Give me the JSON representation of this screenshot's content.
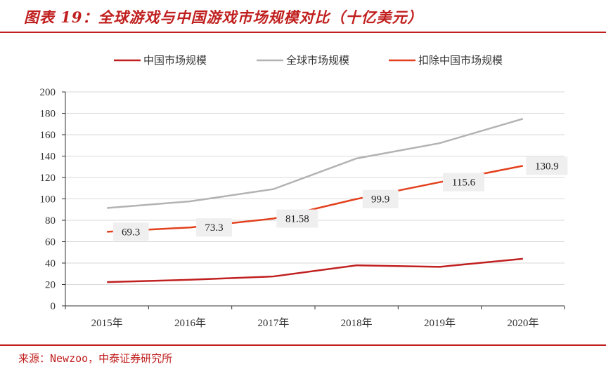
{
  "title": "图表 19：全球游戏与中国游戏市场规模对比（十亿美元）",
  "source": "来源：Newzoo，中泰证券研究所",
  "chart_data": {
    "type": "line",
    "categories": [
      "2015年",
      "2016年",
      "2017年",
      "2018年",
      "2019年",
      "2020年"
    ],
    "ylim": [
      0,
      200
    ],
    "yticks": [
      0,
      20,
      40,
      60,
      80,
      100,
      120,
      140,
      160,
      180,
      200
    ],
    "grid": true,
    "legend_position": "top",
    "series": [
      {
        "name": "中国市场规模",
        "color": "#c0201f",
        "values": [
          22.2,
          24.4,
          27.5,
          37.9,
          36.5,
          44.0
        ],
        "labels": false
      },
      {
        "name": "全球市场规模",
        "color": "#b3b3b3",
        "values": [
          91.5,
          97.7,
          109.1,
          137.8,
          152.1,
          174.9
        ],
        "labels": false
      },
      {
        "name": "扣除中国市场规模",
        "color": "#e2401c",
        "values": [
          69.3,
          73.3,
          81.58,
          99.9,
          115.6,
          130.9
        ],
        "labels": true,
        "label_text": [
          "69.3",
          "73.3",
          "81.58",
          "99.9",
          "115.6",
          "130.9"
        ]
      }
    ]
  }
}
